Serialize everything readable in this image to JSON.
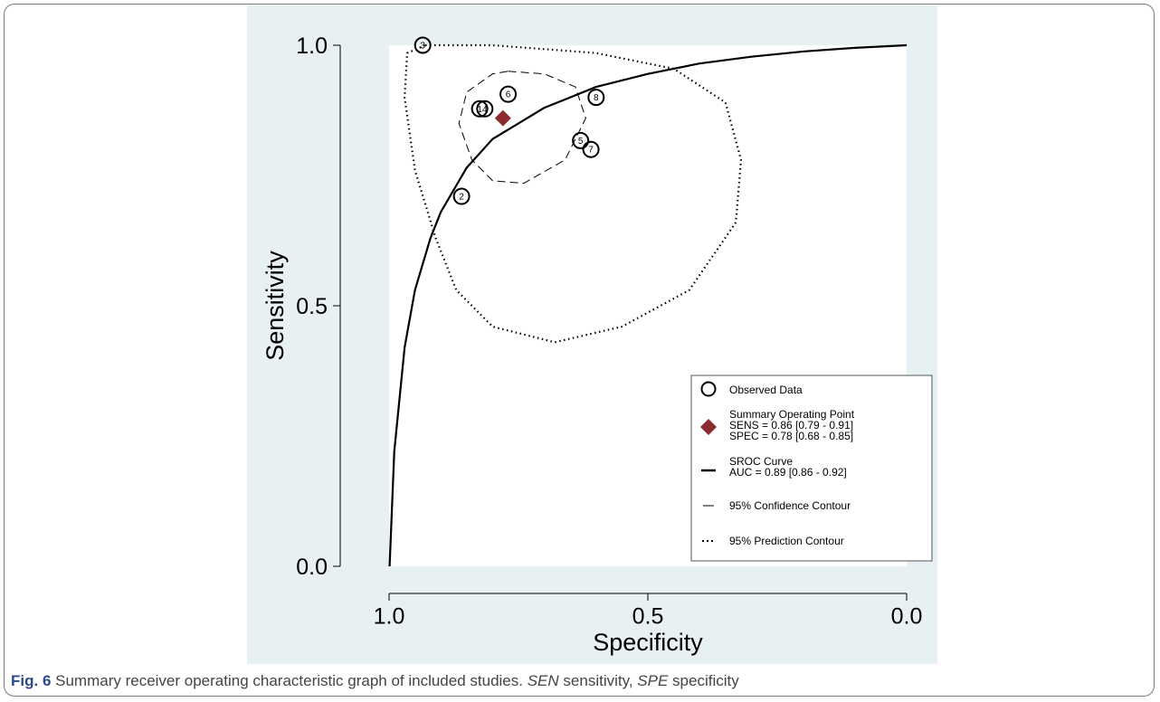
{
  "caption": {
    "label": "Fig. 6",
    "text": " Summary receiver operating characteristic graph of included studies. ",
    "abbr1": "SEN",
    "abbr1_def": " sensitivity, ",
    "abbr2": "SPE",
    "abbr2_def": " specificity"
  },
  "chart_data": {
    "type": "scatter",
    "xlabel": "Specificity",
    "ylabel": "Sensitivity",
    "x_reversed": true,
    "xlim": [
      1.0,
      0.0
    ],
    "ylim": [
      0.0,
      1.0
    ],
    "x_ticks": [
      "1.0",
      "0.5",
      "0.0"
    ],
    "y_ticks": [
      "0.0",
      "0.5",
      "1.0"
    ],
    "observed": [
      {
        "label": "3",
        "specificity": 0.935,
        "sensitivity": 1.0
      },
      {
        "label": "6",
        "specificity": 0.77,
        "sensitivity": 0.906
      },
      {
        "label": "8",
        "specificity": 0.6,
        "sensitivity": 0.9
      },
      {
        "label": "1",
        "specificity": 0.825,
        "sensitivity": 0.878
      },
      {
        "label": "4",
        "specificity": 0.815,
        "sensitivity": 0.878
      },
      {
        "label": "5",
        "specificity": 0.63,
        "sensitivity": 0.817
      },
      {
        "label": "7",
        "specificity": 0.61,
        "sensitivity": 0.8
      },
      {
        "label": "2",
        "specificity": 0.86,
        "sensitivity": 0.71
      }
    ],
    "summary_point": {
      "specificity": 0.78,
      "sensitivity": 0.86,
      "color": "#8b2b2f"
    },
    "sroc_curve": {
      "spec": [
        0.999,
        0.99,
        0.97,
        0.95,
        0.92,
        0.9,
        0.85,
        0.8,
        0.7,
        0.6,
        0.5,
        0.4,
        0.3,
        0.2,
        0.1,
        0.0
      ],
      "sens": [
        0.0,
        0.22,
        0.42,
        0.53,
        0.63,
        0.68,
        0.765,
        0.82,
        0.88,
        0.92,
        0.945,
        0.965,
        0.978,
        0.988,
        0.995,
        1.0
      ]
    },
    "confidence_contour": {
      "spec": [
        0.77,
        0.7,
        0.64,
        0.62,
        0.66,
        0.74,
        0.8,
        0.84,
        0.865,
        0.85,
        0.8,
        0.77
      ],
      "sens": [
        0.95,
        0.945,
        0.92,
        0.86,
        0.78,
        0.735,
        0.74,
        0.78,
        0.85,
        0.91,
        0.945,
        0.95
      ]
    },
    "prediction_contour": {
      "spec": [
        0.93,
        0.8,
        0.6,
        0.45,
        0.35,
        0.32,
        0.33,
        0.42,
        0.55,
        0.68,
        0.8,
        0.87,
        0.91,
        0.95,
        0.97,
        0.965,
        0.93
      ],
      "sens": [
        1.0,
        1.0,
        0.985,
        0.955,
        0.89,
        0.78,
        0.66,
        0.53,
        0.46,
        0.43,
        0.46,
        0.53,
        0.63,
        0.76,
        0.9,
        0.985,
        1.0
      ]
    },
    "legend": {
      "position": "bottom-right",
      "observed_label": "Observed Data",
      "summary_title": "Summary Operating Point",
      "summary_sens": "SENS = 0.86 [0.79 - 0.91]",
      "summary_spec": "SPEC = 0.78 [0.68 - 0.85]",
      "sroc_title": "SROC Curve",
      "sroc_auc": "AUC = 0.89 [0.86 - 0.92]",
      "confidence_label": "95% Confidence Contour",
      "prediction_label": "95% Prediction Contour"
    }
  }
}
